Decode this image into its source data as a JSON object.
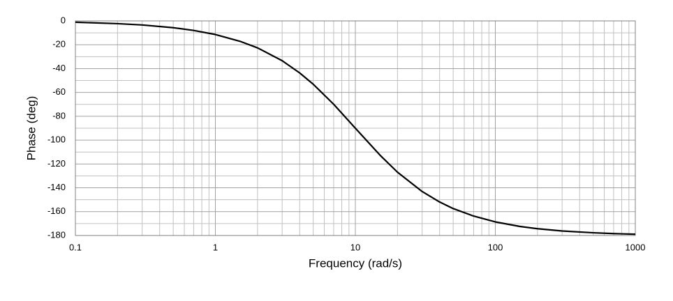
{
  "chart_data": {
    "type": "line",
    "xlabel": "Frequency (rad/s)",
    "ylabel": "Phase (deg)",
    "xscale": "log",
    "grid": true,
    "xlim": [
      0.1,
      1000
    ],
    "ylim": [
      -180,
      0
    ],
    "xticks": [
      0.1,
      1,
      10,
      100,
      1000
    ],
    "yticks": [
      0,
      -20,
      -40,
      -60,
      -80,
      -100,
      -120,
      -140,
      -160,
      -180
    ],
    "xminorticks": [
      0.2,
      0.3,
      0.4,
      0.5,
      0.6,
      0.7,
      0.8,
      0.9,
      2,
      3,
      4,
      5,
      6,
      7,
      8,
      9,
      20,
      30,
      40,
      50,
      60,
      70,
      80,
      90,
      200,
      300,
      400,
      500,
      600,
      700,
      800,
      900
    ],
    "yminorticks": [
      -10,
      -30,
      -50,
      -70,
      -90,
      -110,
      -130,
      -150,
      -170
    ],
    "x": [
      0.1,
      0.2,
      0.3,
      0.5,
      0.7,
      1,
      1.5,
      2,
      3,
      4,
      5,
      7,
      10,
      15,
      20,
      30,
      40,
      50,
      70,
      100,
      150,
      200,
      300,
      500,
      700,
      1000
    ],
    "series": [
      {
        "color": "#000000",
        "values": [
          -1.1,
          -2.3,
          -3.4,
          -5.7,
          -8.0,
          -11.4,
          -17.1,
          -22.6,
          -33.4,
          -43.6,
          -53.1,
          -69.9,
          -90,
          -112.6,
          -126.9,
          -143.1,
          -151.9,
          -157.4,
          -163.7,
          -168.6,
          -172.4,
          -174.3,
          -176.2,
          -177.7,
          -178.4,
          -178.9
        ]
      }
    ]
  }
}
